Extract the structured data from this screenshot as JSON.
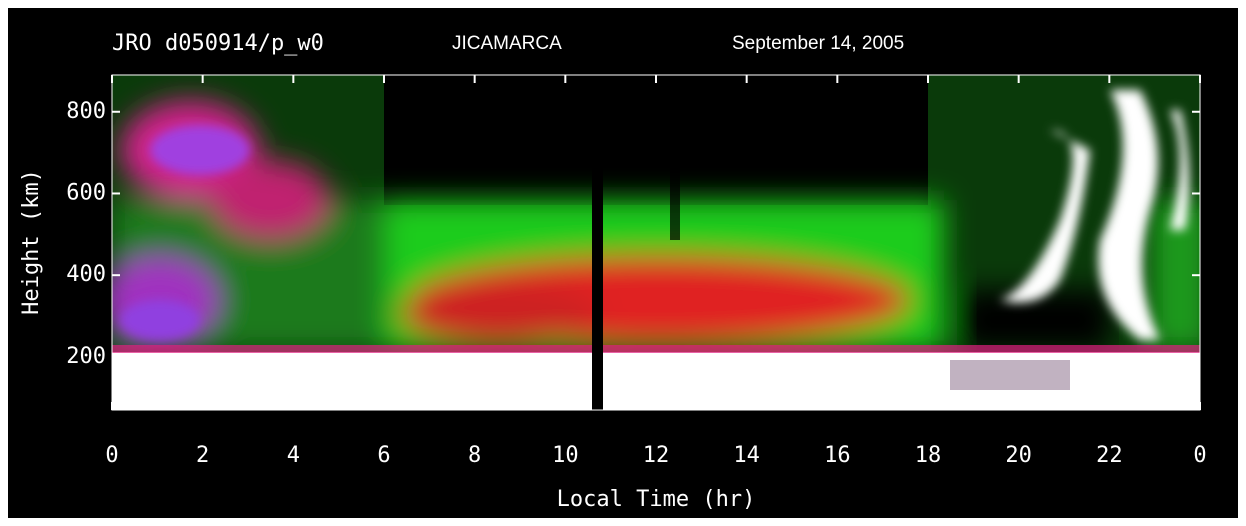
{
  "chart_data": {
    "type": "heatmap",
    "title": "JRO d050914/p_w0",
    "subtitle": "JICAMARCA",
    "date": "September 14, 2005",
    "x_label": "Local Time (hr)",
    "y_label": "Height (km)",
    "xlim": [
      0,
      24
    ],
    "xticks": [
      0,
      2,
      4,
      6,
      8,
      10,
      12,
      14,
      16,
      18,
      20,
      22,
      {
        "value": 24,
        "label": "0"
      }
    ],
    "ylim": [
      70,
      890
    ],
    "yticks": [
      200,
      400,
      600,
      800
    ]
  }
}
